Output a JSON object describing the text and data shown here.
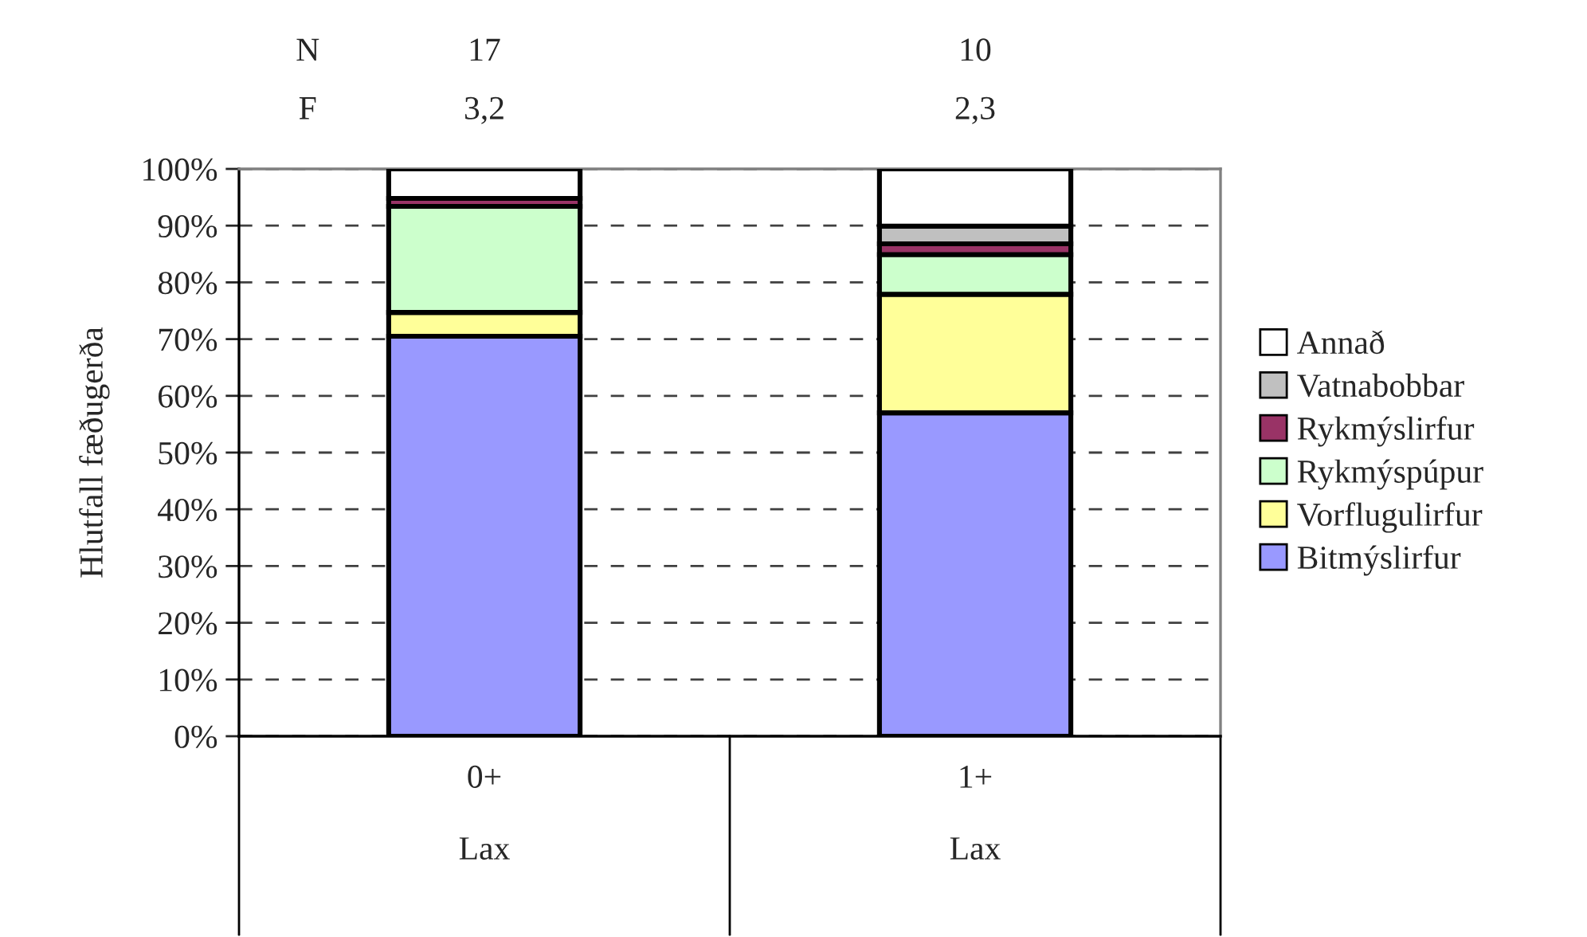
{
  "chart_data": {
    "type": "bar",
    "stacked": true,
    "ylabel": "Hlutfall fæðugerða",
    "categories": [
      "0+\n\nLax",
      "1+\n\nLax"
    ],
    "series": [
      {
        "name": "Bitmýslirfur",
        "color": "#9999ff",
        "values": [
          70.5,
          57.0
        ]
      },
      {
        "name": "Vorflugulirfur",
        "color": "#ffff99",
        "values": [
          4.2,
          20.9
        ]
      },
      {
        "name": "Rykmýspúpur",
        "color": "#ccffcc",
        "values": [
          18.7,
          7.0
        ]
      },
      {
        "name": "Rykmýslirfur",
        "color": "#993366",
        "values": [
          1.4,
          1.9
        ]
      },
      {
        "name": "Vatnabobbar",
        "color": "#c0c0c0",
        "values": [
          0,
          3.1
        ]
      },
      {
        "name": "Annað",
        "color": "#ffffff",
        "values": [
          5.2,
          10.1
        ]
      }
    ],
    "ylim": [
      0,
      100
    ],
    "yticks": [
      {
        "value": 0,
        "label": "0%"
      },
      {
        "value": 10,
        "label": "10%"
      },
      {
        "value": 20,
        "label": "20%"
      },
      {
        "value": 30,
        "label": "30%"
      },
      {
        "value": 40,
        "label": "40%"
      },
      {
        "value": 50,
        "label": "50%"
      },
      {
        "value": 60,
        "label": "60%"
      },
      {
        "value": 70,
        "label": "70%"
      },
      {
        "value": 80,
        "label": "80%"
      },
      {
        "value": 90,
        "label": "90%"
      },
      {
        "value": 100,
        "label": "100%"
      }
    ],
    "grid": "y",
    "legend": "right",
    "annotations": [
      "N",
      "17",
      "10",
      "F",
      "3,2",
      "2,3"
    ]
  }
}
